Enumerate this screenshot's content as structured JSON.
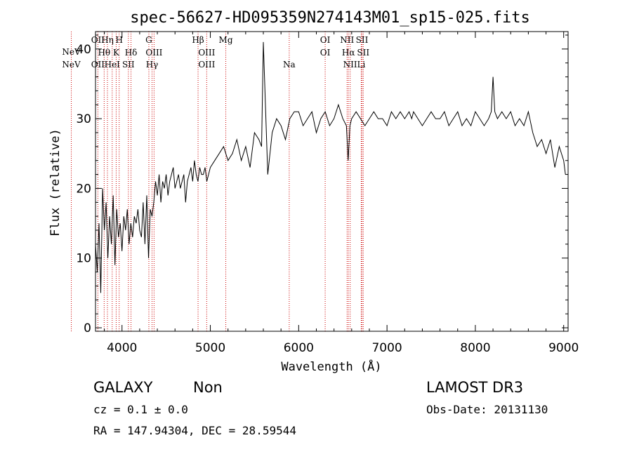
{
  "chart_data": {
    "type": "line",
    "title": "spec-56627-HD095359N274143M01_sp15-025.fits",
    "xlabel": "Wavelength (Å)",
    "ylabel": "Flux (relative)",
    "xlim": [
      3700,
      9050
    ],
    "ylim": [
      -0.5,
      42.5
    ],
    "x_ticks": [
      4000,
      5000,
      6000,
      7000,
      8000,
      9000
    ],
    "x_tick_labels": [
      "4000",
      "5000",
      "6000",
      "7000",
      "8000",
      "9000"
    ],
    "y_ticks": [
      0,
      10,
      20,
      30,
      40
    ],
    "y_tick_labels": [
      "0",
      "10",
      "20",
      "30",
      "40"
    ],
    "grid": false,
    "series": [
      {
        "color": "#000000",
        "x": [
          3700,
          3720,
          3740,
          3760,
          3780,
          3800,
          3820,
          3840,
          3860,
          3880,
          3900,
          3920,
          3940,
          3960,
          3980,
          4000,
          4020,
          4040,
          4060,
          4080,
          4100,
          4120,
          4140,
          4160,
          4180,
          4200,
          4220,
          4240,
          4260,
          4280,
          4300,
          4320,
          4340,
          4360,
          4380,
          4400,
          4420,
          4440,
          4460,
          4480,
          4500,
          4520,
          4540,
          4560,
          4580,
          4600,
          4620,
          4640,
          4660,
          4680,
          4700,
          4720,
          4740,
          4760,
          4780,
          4800,
          4820,
          4840,
          4860,
          4880,
          4900,
          4920,
          4940,
          4960,
          4980,
          5000,
          5050,
          5100,
          5150,
          5200,
          5250,
          5300,
          5350,
          5400,
          5450,
          5500,
          5550,
          5580,
          5600,
          5650,
          5700,
          5750,
          5800,
          5850,
          5900,
          5950,
          6000,
          6050,
          6100,
          6150,
          6200,
          6250,
          6300,
          6350,
          6400,
          6450,
          6500,
          6540,
          6560,
          6580,
          6600,
          6650,
          6700,
          6750,
          6800,
          6850,
          6900,
          6950,
          7000,
          7050,
          7100,
          7150,
          7200,
          7250,
          7280,
          7300,
          7350,
          7400,
          7450,
          7500,
          7550,
          7600,
          7650,
          7700,
          7750,
          7800,
          7850,
          7900,
          7950,
          8000,
          8050,
          8100,
          8150,
          8180,
          8200,
          8220,
          8250,
          8300,
          8350,
          8400,
          8450,
          8500,
          8550,
          8600,
          8650,
          8700,
          8750,
          8800,
          8850,
          8900,
          8950,
          9000,
          9020
        ],
        "y": [
          12,
          8,
          15,
          5,
          20,
          14,
          18,
          10,
          16,
          12,
          19,
          9,
          17,
          13,
          15,
          11,
          16,
          14,
          17,
          12,
          15,
          13,
          16,
          15,
          17,
          14,
          13,
          18,
          12,
          19,
          10,
          17,
          16,
          18,
          21,
          19,
          22,
          18,
          21,
          20,
          22,
          19,
          21,
          22,
          23,
          20,
          21,
          22,
          20,
          21,
          22,
          18,
          21,
          22,
          23,
          21,
          24,
          22,
          21,
          23,
          22,
          22,
          23,
          21,
          22,
          23,
          24,
          25,
          26,
          24,
          25,
          27,
          24,
          26,
          23,
          28,
          27,
          26,
          41,
          22,
          28,
          30,
          29,
          27,
          30,
          31,
          31,
          29,
          30,
          31,
          28,
          30,
          31,
          29,
          30,
          32,
          30,
          29,
          24,
          29,
          30,
          31,
          30,
          29,
          30,
          31,
          30,
          30,
          29,
          31,
          30,
          31,
          30,
          31,
          30,
          31,
          30,
          29,
          30,
          31,
          30,
          30,
          31,
          29,
          30,
          31,
          29,
          30,
          29,
          31,
          30,
          29,
          30,
          31,
          36,
          31,
          30,
          31,
          30,
          31,
          29,
          30,
          29,
          31,
          28,
          26,
          27,
          25,
          27,
          23,
          26,
          24,
          22
        ]
      }
    ],
    "spectral_lines": [
      {
        "label": "NeV",
        "wavelength": 3426,
        "row": 2
      },
      {
        "label": "NeV",
        "wavelength": 3426,
        "row": 4
      },
      {
        "label": "OII",
        "wavelength": 3727,
        "row": 1
      },
      {
        "label": "OII",
        "wavelength": 3727,
        "row": 4
      },
      {
        "label": "Hη",
        "wavelength": 3835,
        "row": 1
      },
      {
        "label": "Hθ",
        "wavelength": 3798,
        "row": 3
      },
      {
        "label": "HeI",
        "wavelength": 3889,
        "row": 4
      },
      {
        "label": "H",
        "wavelength": 3968,
        "row": 1
      },
      {
        "label": "K",
        "wavelength": 3934,
        "row": 3
      },
      {
        "label": "Hδ",
        "wavelength": 4102,
        "row": 3
      },
      {
        "label": "SII",
        "wavelength": 4072,
        "row": 4
      },
      {
        "label": "G",
        "wavelength": 4304,
        "row": 1
      },
      {
        "label": "OIII",
        "wavelength": 4363,
        "row": 3
      },
      {
        "label": "Hγ",
        "wavelength": 4340,
        "row": 4
      },
      {
        "label": "Hβ",
        "wavelength": 4861,
        "row": 1
      },
      {
        "label": "OIII",
        "wavelength": 4959,
        "row": 3
      },
      {
        "label": "OIII",
        "wavelength": 4959,
        "row": 4
      },
      {
        "label": "Mg",
        "wavelength": 5175,
        "row": 1
      },
      {
        "label": "Na",
        "wavelength": 5893,
        "row": 4
      },
      {
        "label": "OI",
        "wavelength": 6300,
        "row": 1
      },
      {
        "label": "OI",
        "wavelength": 6300,
        "row": 3
      },
      {
        "label": "NII",
        "wavelength": 6548,
        "row": 1
      },
      {
        "label": "Hα",
        "wavelength": 6563,
        "row": 3
      },
      {
        "label": "NII",
        "wavelength": 6583,
        "row": 4
      },
      {
        "label": "SII",
        "wavelength": 6717,
        "row": 1
      },
      {
        "label": "SII",
        "wavelength": 6731,
        "row": 3
      },
      {
        "label": "Li",
        "wavelength": 6708,
        "row": 4
      }
    ]
  },
  "info": {
    "object_class": "GALAXY",
    "subclass": "Non",
    "survey": "LAMOST DR3",
    "cz_line": "cz = 0.1 ± 0.0",
    "obs_date": "Obs-Date: 20131130",
    "radec_line": "RA = 147.94304, DEC =  28.59544"
  },
  "colors": {
    "line_marker": "#cc0000",
    "spectrum": "#000000"
  }
}
